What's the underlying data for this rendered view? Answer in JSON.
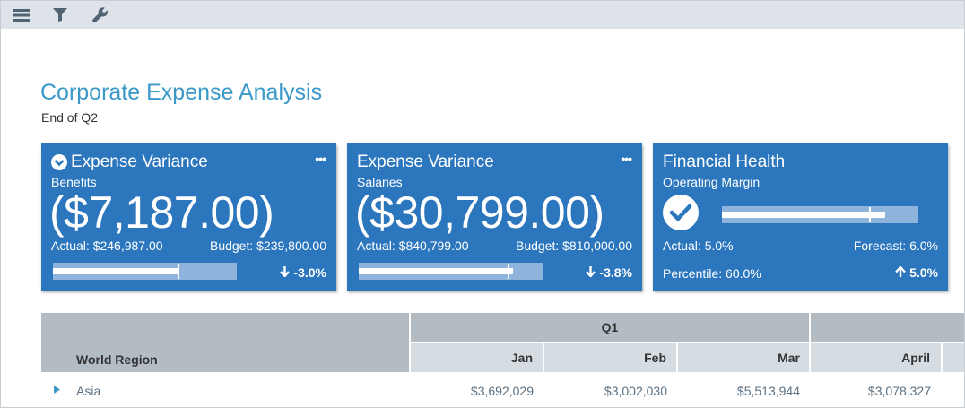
{
  "toolbar": {
    "menu_icon": "hamburger-menu-icon",
    "filter_icon": "filter-icon",
    "tools_icon": "wrench-icon"
  },
  "header": {
    "title": "Corporate Expense Analysis",
    "subtitle": "End of Q2"
  },
  "colors": {
    "accent": "#3a99c9",
    "card": "#2b76bd",
    "card_bar": "#8fb4dc",
    "header_dark": "#b3bcc3",
    "header_light": "#d6dde2"
  },
  "cards": [
    {
      "title": "Expense Variance",
      "icon": "chevron-down-circle-icon",
      "subtitle": "Benefits",
      "value": "($7,187.00)",
      "left_label": "Actual: $246,987.00",
      "right_label": "Budget: $239,800.00",
      "delta": "-3.0%",
      "delta_icon": "arrow-down-icon",
      "menu": "•••",
      "bar_fill": 0.69,
      "bar_marker": 0.68
    },
    {
      "title": "Expense Variance",
      "subtitle": "Salaries",
      "value": "($30,799.00)",
      "left_label": "Actual: $840,799.00",
      "right_label": "Budget: $810,000.00",
      "delta": "-3.8%",
      "delta_icon": "arrow-down-icon",
      "menu": "•••",
      "bar_fill": 0.84,
      "bar_marker": 0.81
    },
    {
      "title": "Financial Health",
      "subtitle": "Operating Margin",
      "icon": "checkmark-circle-icon",
      "left_label": "Actual: 5.0%",
      "right_label": "Forecast: 6.0%",
      "bottom_label": "Percentile: 60.0%",
      "delta": "5.0%",
      "delta_icon": "arrow-up-icon",
      "bar_fill": 0.83,
      "bar_marker": 0.75
    }
  ],
  "table": {
    "row_header": "World Region",
    "groups": [
      "Q1"
    ],
    "columns": [
      "Jan",
      "Feb",
      "Mar",
      "April"
    ],
    "rows": [
      {
        "label": "Asia",
        "values": [
          "$3,692,029",
          "$3,002,030",
          "$5,513,944",
          "$3,078,327"
        ]
      }
    ]
  }
}
